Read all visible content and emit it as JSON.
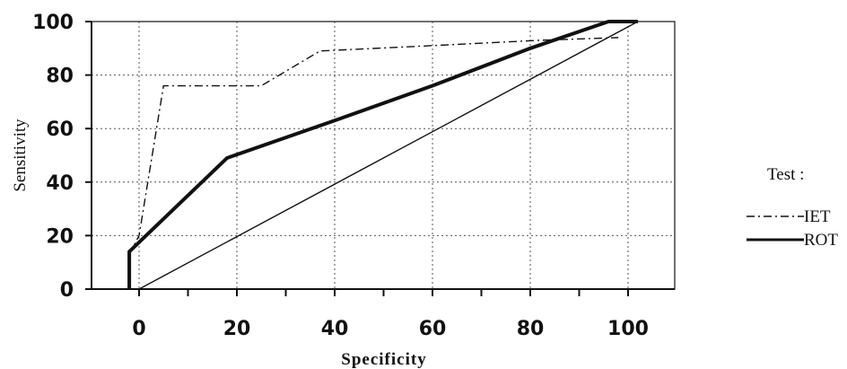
{
  "chart_data": {
    "type": "line",
    "xlabel": "Specificity",
    "ylabel": "Sensitivity",
    "xlim": [
      -5,
      105
    ],
    "ylim": [
      0,
      100
    ],
    "x_ticks": [
      0,
      20,
      40,
      60,
      80,
      100
    ],
    "y_ticks": [
      0,
      20,
      40,
      60,
      80,
      100
    ],
    "grid": true,
    "legend": {
      "title": "Test :",
      "position": "right"
    },
    "series": [
      {
        "name": "IET",
        "style": "dash-dot",
        "x": [
          -2,
          -2,
          0,
          5,
          25,
          37,
          60,
          82,
          98
        ],
        "y": [
          0,
          13,
          20,
          76,
          76,
          89,
          91,
          93,
          94
        ]
      },
      {
        "name": "ROT",
        "style": "solid-thick",
        "x": [
          -2,
          -2,
          18,
          40,
          60,
          80,
          96,
          102
        ],
        "y": [
          0,
          14,
          49,
          63,
          76,
          90,
          100,
          100
        ]
      },
      {
        "name": "",
        "style": "solid-thin",
        "x": [
          0,
          102
        ],
        "y": [
          0,
          100
        ]
      }
    ]
  }
}
